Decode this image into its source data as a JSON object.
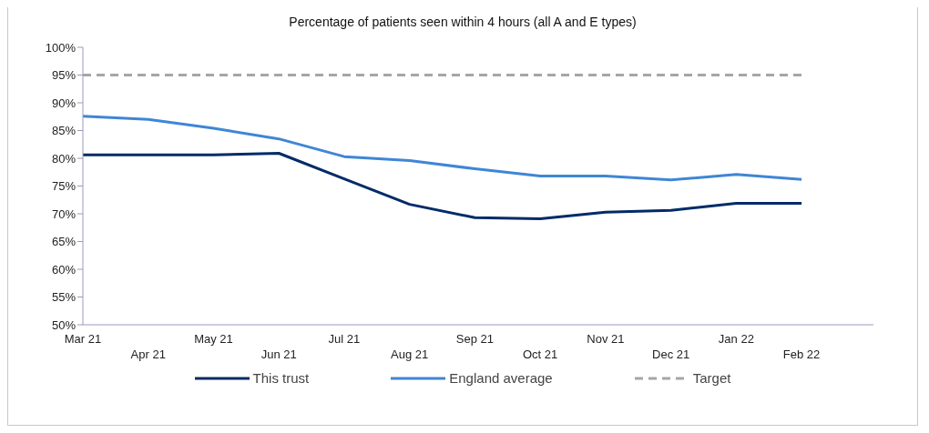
{
  "chart_data": {
    "type": "line",
    "title": "Percentage of patients seen within 4 hours (all A and E types)",
    "categories": [
      "Mar 21",
      "Apr 21",
      "May 21",
      "Jun 21",
      "Jul 21",
      "Aug 21",
      "Sep 21",
      "Oct 21",
      "Nov 21",
      "Dec 21",
      "Jan 22",
      "Feb 22"
    ],
    "series": [
      {
        "name": "This trust",
        "color": "#002b68",
        "values": [
          80.6,
          80.6,
          80.6,
          80.9,
          76.3,
          71.7,
          69.3,
          69.1,
          70.3,
          70.6,
          71.9,
          71.9
        ]
      },
      {
        "name": "England average",
        "color": "#3f86d6",
        "values": [
          87.6,
          87.0,
          85.4,
          83.5,
          80.3,
          79.6,
          78.1,
          76.8,
          76.8,
          76.1,
          77.1,
          76.2
        ]
      },
      {
        "name": "Target",
        "color": "#a6a6a6",
        "line_style": "dashed",
        "values": [
          95,
          95,
          95,
          95,
          95,
          95,
          95,
          95,
          95,
          95,
          95,
          95
        ]
      }
    ],
    "ylim": [
      50,
      100
    ],
    "yticks": [
      {
        "value": 50,
        "label": "50%"
      },
      {
        "value": 55,
        "label": "55%"
      },
      {
        "value": 60,
        "label": "60%"
      },
      {
        "value": 65,
        "label": "65%"
      },
      {
        "value": 70,
        "label": "70%"
      },
      {
        "value": 75,
        "label": "75%"
      },
      {
        "value": 80,
        "label": "80%"
      },
      {
        "value": 85,
        "label": "85%"
      },
      {
        "value": 90,
        "label": "90%"
      },
      {
        "value": 95,
        "label": "95%"
      },
      {
        "value": 100,
        "label": "100%"
      }
    ],
    "grid": false,
    "legend": "bottom",
    "marker": "none"
  }
}
